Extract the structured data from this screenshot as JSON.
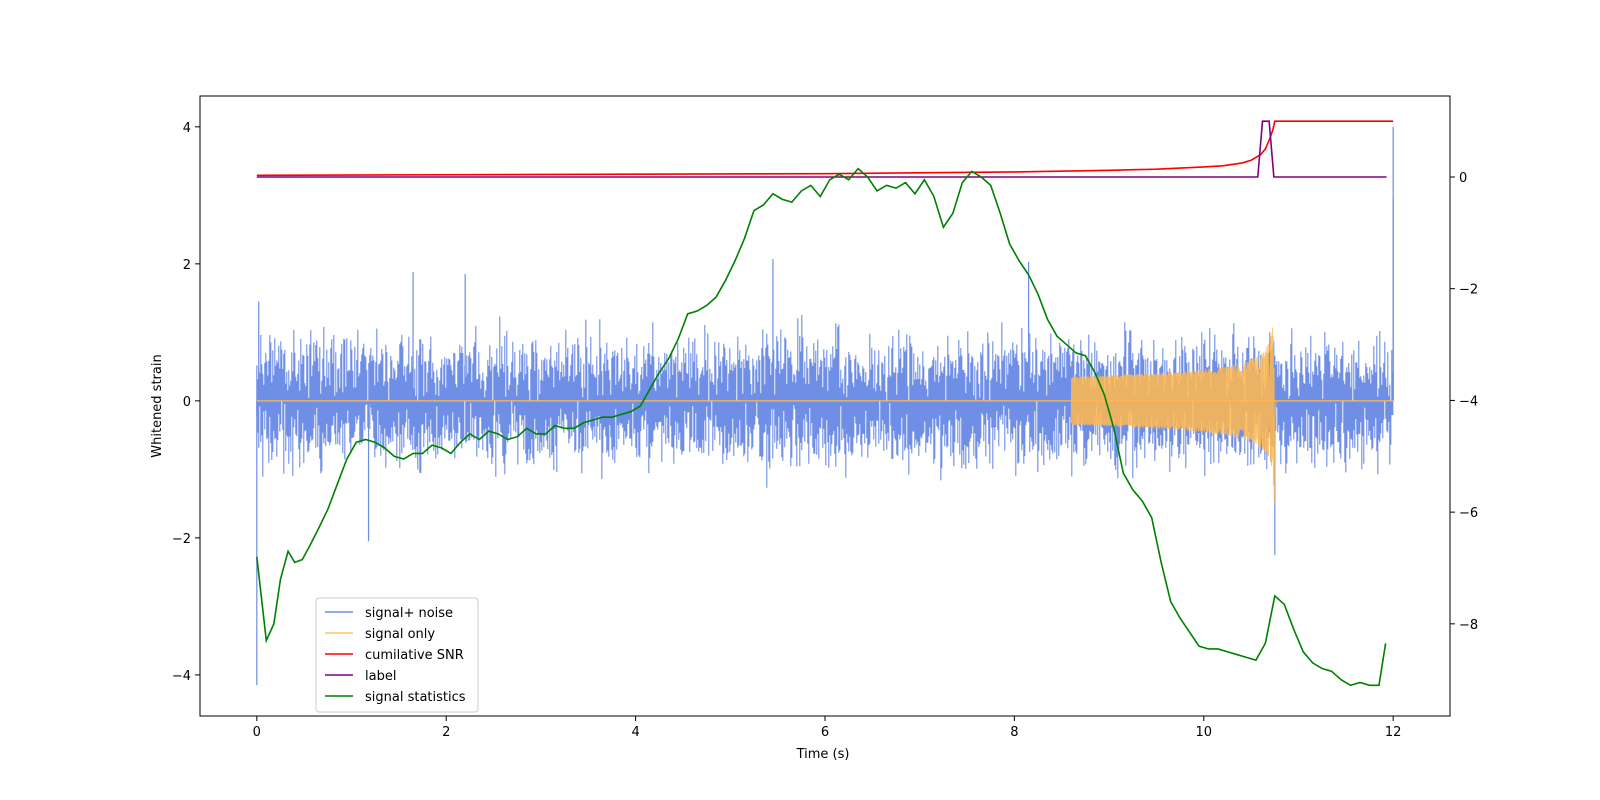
{
  "chart_data": {
    "type": "line",
    "title": "",
    "xlabel": "Time (s)",
    "ylabel": "Whitened strain",
    "y2label": "",
    "xlim": [
      -0.6,
      12.6
    ],
    "ylim": [
      -4.6,
      4.45
    ],
    "y2lim": [
      -9.65,
      1.45
    ],
    "xticks": [
      0,
      2,
      4,
      6,
      8,
      10,
      12
    ],
    "yticks": [
      -4,
      -2,
      0,
      2,
      4
    ],
    "y2ticks": [
      -8,
      -6,
      -4,
      -2,
      0
    ],
    "grid": false,
    "legend_position": "lower-left",
    "legend": [
      "signal+ noise",
      "signal only",
      "cumilative SNR",
      "label",
      "signal statistics"
    ],
    "series": [
      {
        "name": "signal+ noise",
        "axis": "left",
        "color": "#6f8ee6",
        "description_values": {
          "t_start": 0,
          "t_end": 12,
          "typical_envelope": [
            -1.1,
            1.1
          ],
          "extremes": [
            {
              "x": 0.0,
              "y": -4.15
            },
            {
              "x": 0.02,
              "y": 1.45
            },
            {
              "x": 1.65,
              "y": 1.88
            },
            {
              "x": 2.2,
              "y": 1.85
            },
            {
              "x": 5.45,
              "y": 2.07
            },
            {
              "x": 8.15,
              "y": 2.03
            },
            {
              "x": 1.18,
              "y": -2.05
            },
            {
              "x": 10.75,
              "y": -2.25
            },
            {
              "x": 12.0,
              "y": 4.0
            },
            {
              "x": 12.0,
              "y": 2.95
            }
          ]
        }
      },
      {
        "name": "signal only",
        "axis": "left",
        "color": "#ffb84d",
        "description_values": {
          "baseline": 0,
          "chirp_start": 8.6,
          "merger_time": 10.75,
          "peak_amplitude": 1.7
        }
      },
      {
        "name": "cumilative SNR",
        "axis": "right",
        "color": "#ff0000",
        "x": [
          0,
          2,
          4,
          6,
          8,
          9,
          9.5,
          10,
          10.2,
          10.4,
          10.5,
          10.6,
          10.65,
          10.7,
          10.73,
          10.75,
          10.77,
          11,
          11.5,
          12
        ],
        "y": [
          0.03,
          0.04,
          0.05,
          0.06,
          0.09,
          0.12,
          0.14,
          0.18,
          0.2,
          0.25,
          0.3,
          0.4,
          0.5,
          0.7,
          0.85,
          1.0,
          1.0,
          1.0,
          1.0,
          1.0
        ]
      },
      {
        "name": "label",
        "axis": "right",
        "color": "#800080",
        "x": [
          0,
          10.57,
          10.62,
          10.69,
          10.74,
          11.93
        ],
        "y": [
          0,
          0,
          1,
          1,
          0,
          0
        ]
      },
      {
        "name": "signal statistics",
        "axis": "right",
        "color": "#008000",
        "x": [
          0,
          0.1,
          0.18,
          0.25,
          0.33,
          0.4,
          0.48,
          0.56,
          0.65,
          0.75,
          0.85,
          0.95,
          1.05,
          1.15,
          1.25,
          1.35,
          1.45,
          1.55,
          1.65,
          1.75,
          1.85,
          1.95,
          2.05,
          2.15,
          2.25,
          2.35,
          2.45,
          2.55,
          2.65,
          2.75,
          2.85,
          2.95,
          3.05,
          3.15,
          3.25,
          3.35,
          3.45,
          3.55,
          3.65,
          3.75,
          3.85,
          3.95,
          4.05,
          4.15,
          4.25,
          4.35,
          4.45,
          4.55,
          4.65,
          4.75,
          4.85,
          4.95,
          5.05,
          5.15,
          5.25,
          5.35,
          5.45,
          5.55,
          5.65,
          5.75,
          5.85,
          5.95,
          6.05,
          6.15,
          6.25,
          6.35,
          6.45,
          6.55,
          6.65,
          6.75,
          6.85,
          6.95,
          7.05,
          7.15,
          7.25,
          7.35,
          7.45,
          7.55,
          7.65,
          7.75,
          7.85,
          7.95,
          8.05,
          8.15,
          8.25,
          8.35,
          8.45,
          8.55,
          8.65,
          8.75,
          8.85,
          8.95,
          9.05,
          9.15,
          9.25,
          9.35,
          9.45,
          9.55,
          9.65,
          9.75,
          9.85,
          9.95,
          10.05,
          10.15,
          10.25,
          10.35,
          10.45,
          10.55,
          10.65,
          10.75,
          10.85,
          10.95,
          11.05,
          11.15,
          11.25,
          11.35,
          11.45,
          11.55,
          11.65,
          11.75,
          11.85,
          11.92
        ],
        "y": [
          -6.8,
          -8.3,
          -8.0,
          -7.2,
          -6.7,
          -6.9,
          -6.85,
          -6.6,
          -6.3,
          -5.95,
          -5.5,
          -5.05,
          -4.75,
          -4.7,
          -4.75,
          -4.85,
          -5.0,
          -5.05,
          -4.95,
          -4.95,
          -4.8,
          -4.85,
          -4.95,
          -4.75,
          -4.6,
          -4.7,
          -4.55,
          -4.6,
          -4.7,
          -4.65,
          -4.5,
          -4.6,
          -4.6,
          -4.45,
          -4.5,
          -4.5,
          -4.4,
          -4.35,
          -4.3,
          -4.3,
          -4.25,
          -4.2,
          -4.1,
          -3.8,
          -3.5,
          -3.25,
          -2.9,
          -2.45,
          -2.4,
          -2.3,
          -2.15,
          -1.85,
          -1.5,
          -1.1,
          -0.6,
          -0.5,
          -0.3,
          -0.4,
          -0.45,
          -0.25,
          -0.15,
          -0.35,
          -0.05,
          0.05,
          -0.05,
          0.15,
          0.0,
          -0.25,
          -0.15,
          -0.2,
          -0.1,
          -0.3,
          -0.05,
          -0.35,
          -0.9,
          -0.65,
          -0.1,
          0.1,
          0.0,
          -0.15,
          -0.65,
          -1.2,
          -1.5,
          -1.75,
          -2.1,
          -2.55,
          -2.85,
          -3.0,
          -3.15,
          -3.2,
          -3.5,
          -3.9,
          -4.5,
          -5.3,
          -5.6,
          -5.8,
          -6.1,
          -6.9,
          -7.6,
          -7.9,
          -8.15,
          -8.4,
          -8.45,
          -8.45,
          -8.5,
          -8.55,
          -8.6,
          -8.65,
          -8.35,
          -7.5,
          -7.65,
          -8.1,
          -8.5,
          -8.7,
          -8.8,
          -8.85,
          -9.0,
          -9.1,
          -9.05,
          -9.1,
          -9.1,
          -8.35
        ]
      }
    ]
  }
}
